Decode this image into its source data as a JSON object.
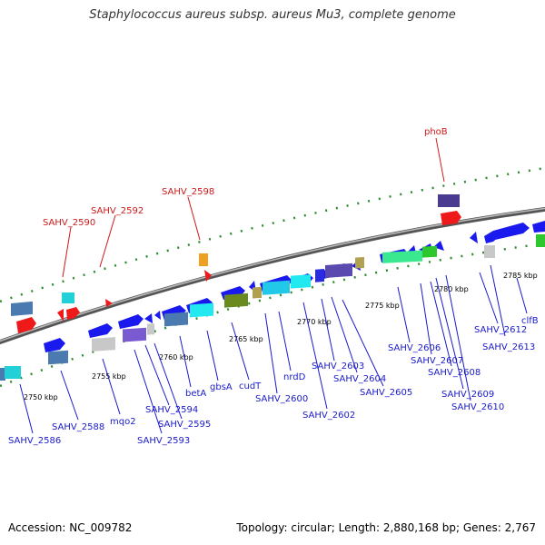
{
  "title": "Staphylococcus aureus subsp. aureus Mu3, complete genome",
  "footer": {
    "accession": "Accession: NC_009782",
    "topology": "Topology: circular; Length: 2,880,168 bp; Genes: 2,767"
  },
  "colors": {
    "forward_strand": "#1a1aee",
    "reverse_strand": "#1a1aee",
    "trna": "#ee1a1a",
    "backbone": "#888888",
    "tick": "#2e8b2e",
    "gene_label": "#1a1acc",
    "rna_label": "#cc1a1a"
  },
  "scale_labels": [
    "2750 kbp",
    "2755 kbp",
    "2760 kbp",
    "2765 kbp",
    "2770 kbp",
    "2775 kbp",
    "2780 kbp",
    "2785 kbp"
  ],
  "gene_labels": [
    "SAHV_2586",
    "SAHV_2588",
    "mqo2",
    "SAHV_2593",
    "SAHV_2594",
    "SAHV_2595",
    "betA",
    "gbsA",
    "cudT",
    "SAHV_2600",
    "nrdD",
    "SAHV_2602",
    "SAHV_2603",
    "SAHV_2604",
    "SAHV_2605",
    "SAHV_2606",
    "SAHV_2607",
    "SAHV_2608",
    "SAHV_2609",
    "SAHV_2610",
    "SAHV_2612",
    "SAHV_2613",
    "clfB"
  ],
  "rna_labels": [
    "SAHV_2590",
    "SAHV_2592",
    "SAHV_2598",
    "phoB"
  ]
}
